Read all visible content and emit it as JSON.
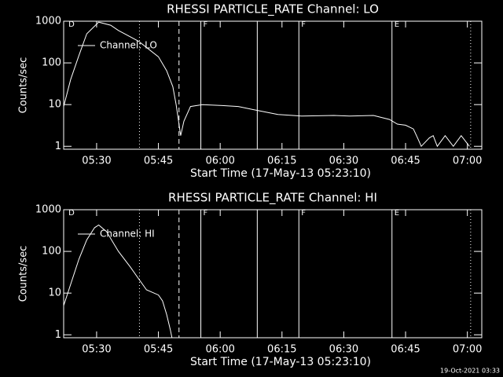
{
  "chart_data": [
    {
      "type": "line",
      "title": "RHESSI PARTICLE_RATE Channel: LO",
      "xlabel": "Start Time (17-May-13 05:23:10)",
      "ylabel": "Counts/sec",
      "x": [
        322.0,
        323.7,
        325.7,
        327.6,
        330.5,
        333.4,
        335.3,
        340.2,
        345.0,
        347.0,
        348.5,
        349.3,
        349.9,
        350.4,
        351.2,
        352.8,
        355.7,
        360.5,
        364.4,
        368.2,
        374.0,
        379.8,
        387.6,
        391.4,
        397.2,
        401.1,
        403.0,
        405.0,
        406.9,
        407.9,
        408.8,
        410.8,
        411.7,
        412.7,
        414.6,
        416.6,
        418.5,
        420.5
      ],
      "series": [
        {
          "name": "Channel: LO",
          "color": "#ffffff",
          "values": [
            9,
            40,
            150,
            500,
            950,
            800,
            600,
            330,
            140,
            65,
            27,
            10,
            4,
            1.8,
            4,
            9,
            10,
            9.5,
            9,
            7.5,
            5.8,
            5.3,
            5.5,
            5.3,
            5.5,
            4.4,
            3.4,
            3.2,
            2.6,
            1.6,
            1,
            1.6,
            1.8,
            1,
            1.8,
            1,
            1.8,
            1
          ]
        }
      ],
      "xlim": [
        322,
        423.5
      ],
      "xticks": [
        {
          "value": 330,
          "label": "05:30"
        },
        {
          "value": 345,
          "label": "05:45"
        },
        {
          "value": 360,
          "label": "06:00"
        },
        {
          "value": 375,
          "label": "06:15"
        },
        {
          "value": 390,
          "label": "06:30"
        },
        {
          "value": 405,
          "label": "06:45"
        },
        {
          "value": 420,
          "label": "07:00"
        }
      ],
      "ylim": [
        0.85,
        1000
      ],
      "yticks": [
        1,
        10,
        100,
        1000
      ],
      "log_y": true,
      "vlines": [
        {
          "x": 340.4,
          "style": "dotted"
        },
        {
          "x": 350.0,
          "style": "dashed"
        },
        {
          "x": 355.3,
          "style": "solid"
        },
        {
          "x": 369.0,
          "style": "solid"
        },
        {
          "x": 379.1,
          "style": "solid"
        },
        {
          "x": 401.7,
          "style": "solid"
        },
        {
          "x": 420.8,
          "style": "dotted"
        }
      ],
      "flags": [
        {
          "x": 322.6,
          "label": "D"
        },
        {
          "x": 355.3,
          "label": "F"
        },
        {
          "x": 379.1,
          "label": "F"
        },
        {
          "x": 401.7,
          "label": "E"
        }
      ]
    },
    {
      "type": "line",
      "title": "RHESSI PARTICLE_RATE Channel: HI",
      "xlabel": "Start Time (17-May-13 05:23:10)",
      "ylabel": "Counts/sec",
      "x": [
        322.0,
        325.7,
        327.6,
        329.5,
        330.5,
        332.4,
        335.3,
        338.2,
        340.2,
        342.1,
        345.0,
        346.0,
        347.0,
        347.9,
        348.3
      ],
      "series": [
        {
          "name": "Channel: HI",
          "color": "#ffffff",
          "values": [
            5,
            65,
            190,
            370,
            430,
            300,
            100,
            42,
            22,
            12,
            9,
            6.5,
            3.1,
            1.3,
            0.85
          ]
        }
      ],
      "xlim": [
        322,
        423.5
      ],
      "xticks": [
        {
          "value": 330,
          "label": "05:30"
        },
        {
          "value": 345,
          "label": "05:45"
        },
        {
          "value": 360,
          "label": "06:00"
        },
        {
          "value": 375,
          "label": "06:15"
        },
        {
          "value": 390,
          "label": "06:30"
        },
        {
          "value": 405,
          "label": "06:45"
        },
        {
          "value": 420,
          "label": "07:00"
        }
      ],
      "ylim": [
        0.85,
        1000
      ],
      "yticks": [
        1,
        10,
        100,
        1000
      ],
      "log_y": true,
      "vlines": [
        {
          "x": 340.4,
          "style": "dotted"
        },
        {
          "x": 350.0,
          "style": "dashed"
        },
        {
          "x": 355.3,
          "style": "solid"
        },
        {
          "x": 369.0,
          "style": "solid"
        },
        {
          "x": 379.1,
          "style": "solid"
        },
        {
          "x": 401.7,
          "style": "solid"
        },
        {
          "x": 420.8,
          "style": "dotted"
        }
      ],
      "flags": [
        {
          "x": 322.6,
          "label": "D"
        },
        {
          "x": 355.3,
          "label": "F"
        },
        {
          "x": 379.1,
          "label": "F"
        },
        {
          "x": 401.7,
          "label": "E"
        }
      ]
    }
  ],
  "footer": "19-Oct-2021 03:33"
}
